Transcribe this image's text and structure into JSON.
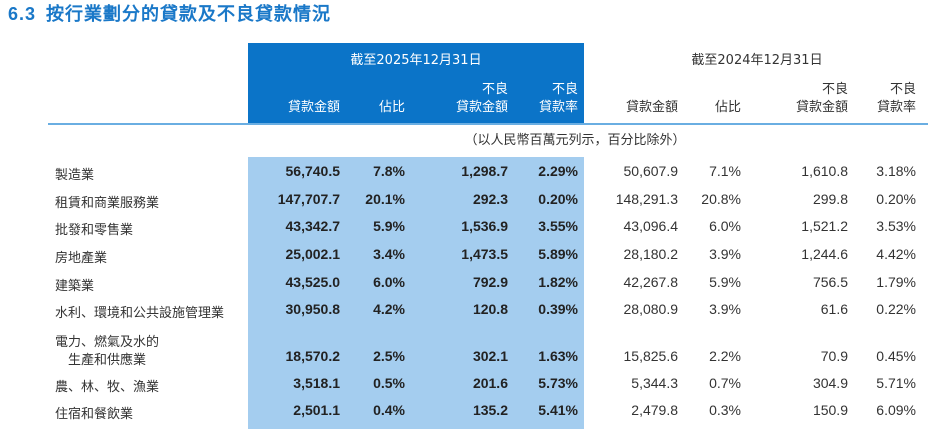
{
  "title": {
    "number": "6.3",
    "text": "按行業劃分的貸款及不良貸款情況"
  },
  "header": {
    "period_2025": "截至2025年12月31日",
    "period_2024": "截至2024年12月31日",
    "columns": [
      {
        "line1": "",
        "line2": "貸款金額"
      },
      {
        "line1": "",
        "line2": "佔比"
      },
      {
        "line1": "不良",
        "line2": "貸款金額"
      },
      {
        "line1": "不良",
        "line2": "貸款率"
      }
    ]
  },
  "unit_note": "（以人民幣百萬元列示，百分比除外）",
  "accent_colors": {
    "title": "#1a78c8",
    "header_bg": "#0b74c8",
    "highlight_bg": "#a4cdef"
  },
  "rows": [
    {
      "label": "製造業",
      "v2025": [
        "56,740.5",
        "7.8%",
        "1,298.7",
        "2.29%"
      ],
      "v2024": [
        "50,607.9",
        "7.1%",
        "1,610.8",
        "3.18%"
      ]
    },
    {
      "label": "租賃和商業服務業",
      "v2025": [
        "147,707.7",
        "20.1%",
        "292.3",
        "0.20%"
      ],
      "v2024": [
        "148,291.3",
        "20.8%",
        "299.8",
        "0.20%"
      ]
    },
    {
      "label": "批發和零售業",
      "v2025": [
        "43,342.7",
        "5.9%",
        "1,536.9",
        "3.55%"
      ],
      "v2024": [
        "43,096.4",
        "6.0%",
        "1,521.2",
        "3.53%"
      ]
    },
    {
      "label": "房地產業",
      "v2025": [
        "25,002.1",
        "3.4%",
        "1,473.5",
        "5.89%"
      ],
      "v2024": [
        "28,180.2",
        "3.9%",
        "1,244.6",
        "4.42%"
      ]
    },
    {
      "label": "建築業",
      "v2025": [
        "43,525.0",
        "6.0%",
        "792.9",
        "1.82%"
      ],
      "v2024": [
        "42,267.8",
        "5.9%",
        "756.5",
        "1.79%"
      ]
    },
    {
      "label": "水利、環境和公共設施管理業",
      "v2025": [
        "30,950.8",
        "4.2%",
        "120.8",
        "0.39%"
      ],
      "v2024": [
        "28,080.9",
        "3.9%",
        "61.6",
        "0.22%"
      ]
    },
    {
      "label": "電力、燃氣及水的",
      "label2": "生產和供應業",
      "v2025": [
        "18,570.2",
        "2.5%",
        "302.1",
        "1.63%"
      ],
      "v2024": [
        "15,825.6",
        "2.2%",
        "70.9",
        "0.45%"
      ]
    },
    {
      "label": "農、林、牧、漁業",
      "v2025": [
        "3,518.1",
        "0.5%",
        "201.6",
        "5.73%"
      ],
      "v2024": [
        "5,344.3",
        "0.7%",
        "304.9",
        "5.71%"
      ]
    },
    {
      "label": "住宿和餐飲業",
      "v2025": [
        "2,501.1",
        "0.4%",
        "135.2",
        "5.41%"
      ],
      "v2024": [
        "2,479.8",
        "0.3%",
        "150.9",
        "6.09%"
      ]
    }
  ]
}
